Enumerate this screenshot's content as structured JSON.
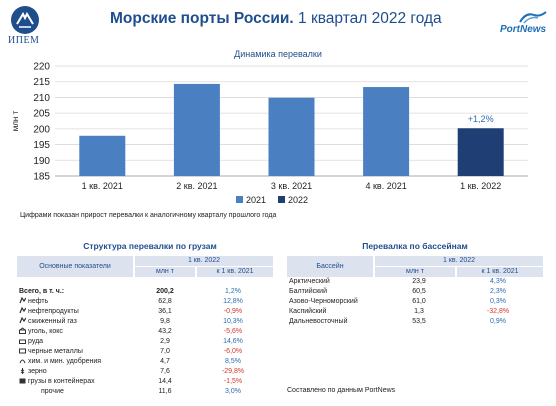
{
  "header": {
    "ipem_logo": "ИПЕМ",
    "title_bold": "Морские порты России.",
    "title_rest": " 1 квартал 2022 года",
    "portnews_logo": "PortNews"
  },
  "chart_data": {
    "type": "bar",
    "title": "Динамика перевалки",
    "ylabel": "млн т",
    "ylim": [
      185,
      220
    ],
    "yticks": [
      185,
      190,
      195,
      200,
      205,
      210,
      215,
      220
    ],
    "categories": [
      "1 кв. 2021",
      "2 кв. 2021",
      "3 кв. 2021",
      "4 кв. 2021",
      "1 кв. 2022"
    ],
    "values": [
      197.8,
      214.3,
      209.9,
      213.3,
      200.2
    ],
    "bar_series": [
      "2021",
      "2021",
      "2021",
      "2021",
      "2022"
    ],
    "annotations": [
      {
        "category": "1 кв. 2022",
        "text": "+1,2%"
      }
    ],
    "legend": [
      {
        "name": "2021",
        "color": "#4a7fc1"
      },
      {
        "name": "2022",
        "color": "#1f3f74"
      }
    ],
    "legend_position": "bottom",
    "grid": true
  },
  "note": "Цифрами показан прирост перевалки к аналогичному кварталу прошлого года",
  "cargo_table": {
    "title": "Структура перевалки по грузам",
    "period": "1 кв. 2022",
    "col_name": "Основные показатели",
    "col_value": "млн т",
    "col_change": "к 1 кв. 2021",
    "rows": [
      {
        "name": "Всего, в т. ч.:",
        "value": "200,2",
        "change": "1,2%",
        "icon": "",
        "bold": true
      },
      {
        "name": "нефть",
        "value": "62,8",
        "change": "12,8%",
        "icon": "oil-icon"
      },
      {
        "name": "нефтепродукты",
        "value": "36,1",
        "change": "-0,9%",
        "icon": "oil-products-icon"
      },
      {
        "name": "сжиженный газ",
        "value": "9,8",
        "change": "10,3%",
        "icon": "gas-icon"
      },
      {
        "name": "уголь, кокс",
        "value": "43,2",
        "change": "-5,6%",
        "icon": "coal-icon"
      },
      {
        "name": "руда",
        "value": "2,9",
        "change": "14,6%",
        "icon": "ore-icon"
      },
      {
        "name": "черные металлы",
        "value": "7,0",
        "change": "-6,0%",
        "icon": "metal-icon"
      },
      {
        "name": "хим. и мин. удобрения",
        "value": "4,7",
        "change": "8,5%",
        "icon": "fertilizer-icon"
      },
      {
        "name": "зерно",
        "value": "7,6",
        "change": "-29,8%",
        "icon": "grain-icon"
      },
      {
        "name": "грузы в контейнерах",
        "value": "14,4",
        "change": "-1,5%",
        "icon": "container-icon"
      },
      {
        "name": "прочие",
        "value": "11,6",
        "change": "3,0%",
        "icon": ""
      }
    ]
  },
  "basin_table": {
    "title": "Перевалка по бассейнам",
    "col_name": "Бассейн",
    "period": "1 кв. 2022",
    "col_value": "млн т",
    "col_change": "к 1 кв. 2021",
    "rows": [
      {
        "name": "Арктический",
        "value": "23,9",
        "change": "4,3%"
      },
      {
        "name": "Балтийский",
        "value": "60,5",
        "change": "2,3%"
      },
      {
        "name": "Азово-Черноморский",
        "value": "61,0",
        "change": "0,3%"
      },
      {
        "name": "Каспийский",
        "value": "1,3",
        "change": "-32,8%"
      },
      {
        "name": "Дальневосточный",
        "value": "53,5",
        "change": "0,9%"
      }
    ]
  },
  "source": "Составлено по данным PortNews"
}
